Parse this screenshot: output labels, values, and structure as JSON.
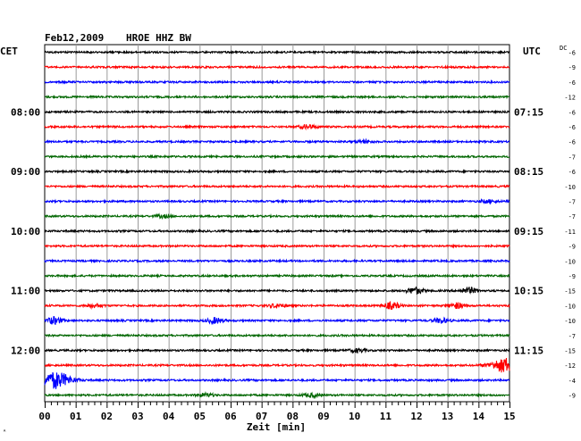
{
  "header": {
    "date": "Feb12,2009",
    "station": "HROE HHZ BW"
  },
  "left_label": "CET",
  "right_label": "UTC",
  "dc_label": "DC",
  "corner_mark": "ᴬ",
  "chart_data": {
    "type": "line",
    "title": "Feb12,2009   HROE HHZ BW",
    "xlabel": "Zeit [min]",
    "xlim": [
      0,
      15
    ],
    "x_ticks": [
      "00",
      "01",
      "02",
      "03",
      "04",
      "05",
      "06",
      "07",
      "08",
      "09",
      "10",
      "11",
      "12",
      "13",
      "14",
      "15"
    ],
    "trace_colors": [
      "#000000",
      "#ff0000",
      "#0000ff",
      "#006600"
    ],
    "cet_hour_labels": [
      {
        "trace": 4,
        "label": "08:00"
      },
      {
        "trace": 8,
        "label": "09:00"
      },
      {
        "trace": 12,
        "label": "10:00"
      },
      {
        "trace": 16,
        "label": "11:00"
      },
      {
        "trace": 20,
        "label": "12:00"
      }
    ],
    "utc_labels": [
      {
        "trace": 4,
        "label": "07:15"
      },
      {
        "trace": 8,
        "label": "08:15"
      },
      {
        "trace": 12,
        "label": "09:15"
      },
      {
        "trace": 16,
        "label": "10:15"
      },
      {
        "trace": 20,
        "label": "11:15"
      }
    ],
    "dc_offsets": [
      "-6",
      "-9",
      "-6",
      "-12",
      "-6",
      "-6",
      "-6",
      "-7",
      "-6",
      "-10",
      "-7",
      "-7",
      "-11",
      "-9",
      "-10",
      "-9",
      "-15",
      "-10",
      "-10",
      "-7",
      "-15",
      "-12",
      "-4",
      "-9"
    ],
    "events": [
      {
        "trace": 5,
        "minute": 8.5,
        "amplitude": 2.2
      },
      {
        "trace": 6,
        "minute": 10.3,
        "amplitude": 1.5
      },
      {
        "trace": 10,
        "minute": 14.3,
        "amplitude": 1.6
      },
      {
        "trace": 11,
        "minute": 3.8,
        "amplitude": 1.5
      },
      {
        "trace": 16,
        "minute": 11.95,
        "amplitude": 3.5
      },
      {
        "trace": 16,
        "minute": 13.7,
        "amplitude": 3.2
      },
      {
        "trace": 17,
        "minute": 1.6,
        "amplitude": 1.8
      },
      {
        "trace": 17,
        "minute": 7.5,
        "amplitude": 2.0
      },
      {
        "trace": 17,
        "minute": 11.2,
        "amplitude": 3.6
      },
      {
        "trace": 17,
        "minute": 13.3,
        "amplitude": 3.0
      },
      {
        "trace": 18,
        "minute": 0.3,
        "amplitude": 3.8
      },
      {
        "trace": 18,
        "minute": 5.5,
        "amplitude": 3.0
      },
      {
        "trace": 18,
        "minute": 12.8,
        "amplitude": 2.6
      },
      {
        "trace": 20,
        "minute": 10.1,
        "amplitude": 1.8
      },
      {
        "trace": 21,
        "minute": 14.9,
        "amplitude": 8.0
      },
      {
        "trace": 22,
        "minute": 0.35,
        "amplitude": 9.0
      },
      {
        "trace": 23,
        "minute": 5.2,
        "amplitude": 1.8
      },
      {
        "trace": 23,
        "minute": 8.6,
        "amplitude": 2.0
      }
    ]
  }
}
